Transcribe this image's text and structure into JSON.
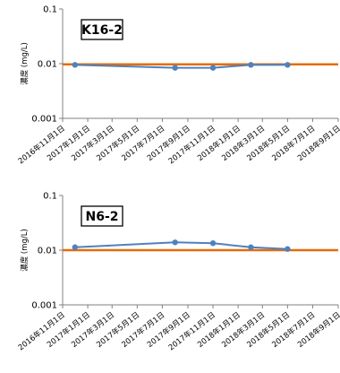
{
  "colors": {
    "series": "#4f81bd",
    "reference": "#e46c0a",
    "axis": "#808080"
  },
  "chart_data": [
    {
      "type": "line",
      "label": "K16-2",
      "ylabel": "濃度 (mg/L)",
      "yscale": "log",
      "ylim": [
        0.001,
        0.1
      ],
      "ytick_labels": [
        "0.1",
        "0.01",
        "0.001"
      ],
      "xlim": [
        "2016-11-01",
        "2018-09-01"
      ],
      "xtick_labels": [
        "2016年11月1日",
        "2017年1月1日",
        "2017年3月1日",
        "2017年5月1日",
        "2017年7月1日",
        "2017年9月1日",
        "2017年11月1日",
        "2018年1月1日",
        "2018年3月1日",
        "2018年5月1日",
        "2018年7月1日",
        "2018年9月1日"
      ],
      "series": [
        {
          "x": [
            "2016-12-01",
            "2017-08-01",
            "2017-11-01",
            "2018-02-01",
            "2018-05-01"
          ],
          "y": [
            0.0095,
            0.0084,
            0.0084,
            0.0095,
            0.0095
          ]
        }
      ],
      "reference_line": 0.0097
    },
    {
      "type": "line",
      "label": "N6-2",
      "ylabel": "濃度 (mg/L)",
      "yscale": "log",
      "ylim": [
        0.001,
        0.1
      ],
      "ytick_labels": [
        "0.1",
        "0.01",
        "0.001"
      ],
      "xlim": [
        "2016-11-01",
        "2018-09-01"
      ],
      "xtick_labels": [
        "2016年11月1日",
        "2017年1月1日",
        "2017年3月1日",
        "2017年5月1日",
        "2017年7月1日",
        "2017年9月1日",
        "2017年11月1日",
        "2018年1月1日",
        "2018年3月1日",
        "2018年5月1日",
        "2018年7月1日",
        "2018年9月1日"
      ],
      "series": [
        {
          "x": [
            "2016-12-01",
            "2017-08-01",
            "2017-11-01",
            "2018-02-01",
            "2018-05-01"
          ],
          "y": [
            0.0113,
            0.0139,
            0.0134,
            0.0113,
            0.0105
          ]
        }
      ],
      "reference_line": 0.01
    }
  ]
}
